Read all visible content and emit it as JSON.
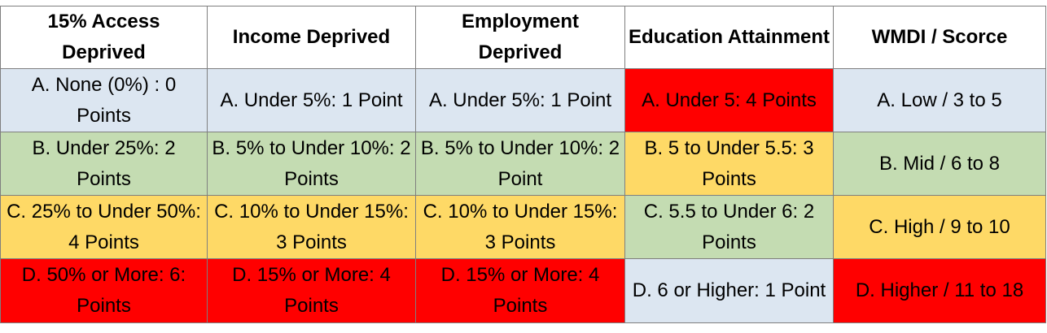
{
  "headers": [
    "15% Access Deprived",
    "Income Deprived",
    "Employment Deprived",
    "Education Attainment",
    "WMDI / Scorce"
  ],
  "rows": [
    [
      "A. None (0%) : 0 Points",
      "A. Under 5%: 1 Point",
      "A. Under 5%: 1 Point",
      "A. Under 5: 4 Points",
      "A. Low / 3 to 5"
    ],
    [
      "B. Under 25%: 2 Points",
      "B. 5% to Under 10%: 2 Points",
      "B. 5% to Under 10%: 2 Point",
      "B. 5 to Under 5.5: 3 Points",
      "B. Mid / 6 to 8"
    ],
    [
      "C. 25% to Under 50%: 4 Points",
      "C. 10% to Under 15%: 3 Points",
      "C. 10% to Under 15%: 3 Points",
      "C. 5.5 to Under 6: 2 Points",
      "C. High / 9 to 10"
    ],
    [
      "D. 50% or More: 6: Points",
      "D. 15% or More: 4 Points",
      "D. 15% or More: 4 Points",
      "D. 6 or Higher: 1 Point",
      "D. Higher / 11 to 18"
    ]
  ],
  "colors": {
    "blue": "#dce6f1",
    "green": "#c4dcb2",
    "yellow": "#fed966",
    "red": "#ff0000",
    "border": "#7f7f7f"
  }
}
